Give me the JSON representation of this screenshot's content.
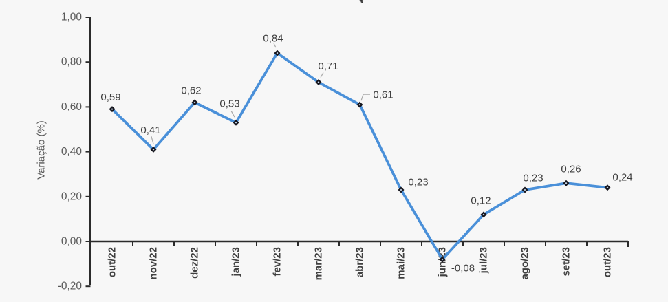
{
  "page": {
    "background_color": "#f7f7f7",
    "clipped_title_fragment": "ç"
  },
  "chart_data": {
    "type": "line",
    "categories": [
      "out/22",
      "nov/22",
      "dez/22",
      "jan/23",
      "fev/23",
      "mar/23",
      "abr/23",
      "mai/23",
      "jun/23",
      "jul/23",
      "ago/23",
      "set/23",
      "out/23"
    ],
    "values": [
      0.59,
      0.41,
      0.62,
      0.53,
      0.84,
      0.71,
      0.61,
      0.23,
      -0.08,
      0.12,
      0.23,
      0.26,
      0.24
    ],
    "point_labels": [
      "0,59",
      "0,41",
      "0,62",
      "0,53",
      "0,84",
      "0,71",
      "0,61",
      "0,23",
      "-0,08",
      "0,12",
      "0,23",
      "0,26",
      "0,24"
    ],
    "title": "",
    "xlabel": "",
    "ylabel": "Variação (%)",
    "ylim": [
      -0.2,
      1.0
    ],
    "ytick_values": [
      1.0,
      0.8,
      0.6,
      0.4,
      0.2,
      0.0,
      -0.2
    ],
    "ytick_labels": [
      "1,00",
      "0,80",
      "0,60",
      "0,40",
      "0,20",
      "0,00",
      "-0,20"
    ],
    "grid": false,
    "legend_position": "none",
    "colors": {
      "line": "#4a90d9",
      "marker": "#15151d",
      "marker_center": "#cfe0f2",
      "axis": "#2b2b2b",
      "tick_label": "#595959",
      "x_label": "#404040",
      "data_label": "#3d3d3d",
      "leader_line": "#a8a8a8",
      "background": "#f7f7f7"
    }
  }
}
